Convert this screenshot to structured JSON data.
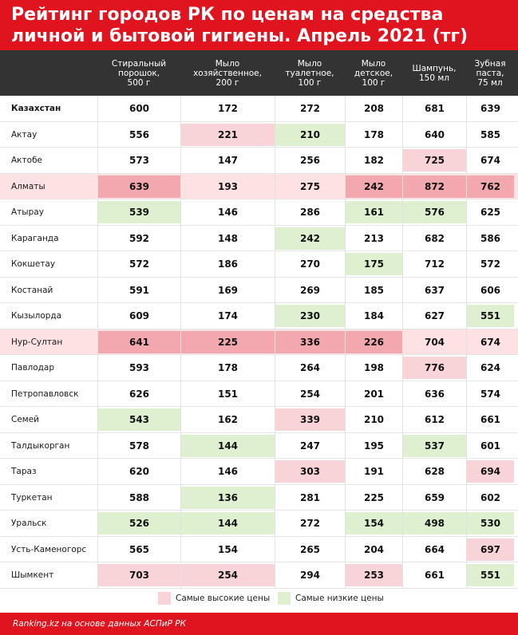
{
  "title": {
    "line1": "Рейтинг городов РК по ценам на средства",
    "line2": "личной и бытовой гигиены. Апрель 2021 (тг)"
  },
  "columns": [
    "Стиральный\nпорошок,\n500 г",
    "Мыло\nхозяйственное,\n200 г",
    "Мыло\nтуалетное,\n100 г",
    "Мыло\nдетское,\n100 г",
    "Шампунь,\n150 мл",
    "Зубная\nпаста,\n75 мл"
  ],
  "legend": {
    "high_label": "Самые высокие цены",
    "low_label": "Самые низкие цены",
    "high_color": "#f8d3d7",
    "low_color": "#dff0d0",
    "row_highlight_color": "#fde1e3"
  },
  "footer": "Ranking.kz на основе данных АСПиР РК",
  "chart_data": {
    "type": "table",
    "row_headers": [
      "Казахстан",
      "Актау",
      "Актобе",
      "Алматы",
      "Атырау",
      "Караганда",
      "Кокшетау",
      "Костанай",
      "Кызылорда",
      "Нур-Султан",
      "Павлодар",
      "Петропавловск",
      "Семей",
      "Талдыкорган",
      "Тараз",
      "Туркетан",
      "Уральск",
      "Усть-Каменогорс",
      "Шымкент"
    ],
    "row_highlight": [
      false,
      false,
      false,
      true,
      false,
      false,
      false,
      false,
      false,
      true,
      false,
      false,
      false,
      false,
      false,
      false,
      false,
      false,
      false
    ],
    "values": [
      [
        600,
        172,
        272,
        208,
        681,
        639
      ],
      [
        556,
        221,
        210,
        178,
        640,
        585
      ],
      [
        573,
        147,
        256,
        182,
        725,
        674
      ],
      [
        639,
        193,
        275,
        242,
        872,
        762
      ],
      [
        539,
        146,
        286,
        161,
        576,
        625
      ],
      [
        592,
        148,
        242,
        213,
        682,
        586
      ],
      [
        572,
        186,
        270,
        175,
        712,
        572
      ],
      [
        591,
        169,
        269,
        185,
        637,
        606
      ],
      [
        609,
        174,
        230,
        184,
        627,
        551
      ],
      [
        641,
        225,
        336,
        226,
        704,
        674
      ],
      [
        593,
        178,
        264,
        198,
        776,
        624
      ],
      [
        626,
        151,
        254,
        201,
        636,
        574
      ],
      [
        543,
        162,
        339,
        210,
        612,
        661
      ],
      [
        578,
        144,
        247,
        195,
        537,
        601
      ],
      [
        620,
        146,
        303,
        191,
        628,
        694
      ],
      [
        588,
        136,
        281,
        225,
        659,
        602
      ],
      [
        526,
        144,
        272,
        154,
        498,
        530
      ],
      [
        565,
        154,
        265,
        204,
        664,
        697
      ],
      [
        703,
        254,
        294,
        253,
        661,
        551
      ]
    ],
    "marks": [
      [
        "",
        "",
        "",
        "",
        "",
        ""
      ],
      [
        "",
        "high",
        "low",
        "",
        "",
        ""
      ],
      [
        "",
        "",
        "",
        "",
        "high",
        ""
      ],
      [
        "high",
        "",
        "",
        "high",
        "high",
        "high"
      ],
      [
        "low",
        "",
        "",
        "low",
        "low",
        ""
      ],
      [
        "",
        "",
        "low",
        "",
        "",
        ""
      ],
      [
        "",
        "",
        "",
        "low",
        "",
        ""
      ],
      [
        "",
        "",
        "",
        "",
        "",
        ""
      ],
      [
        "",
        "",
        "low",
        "",
        "",
        "low"
      ],
      [
        "high",
        "high",
        "high",
        "high",
        "",
        ""
      ],
      [
        "",
        "",
        "",
        "",
        "high",
        ""
      ],
      [
        "",
        "",
        "",
        "",
        "",
        ""
      ],
      [
        "low",
        "",
        "high",
        "",
        "",
        ""
      ],
      [
        "",
        "low",
        "",
        "",
        "low",
        ""
      ],
      [
        "",
        "",
        "high",
        "",
        "",
        "high"
      ],
      [
        "",
        "low",
        "",
        "",
        "",
        ""
      ],
      [
        "low",
        "low",
        "",
        "low",
        "low",
        "low"
      ],
      [
        "",
        "",
        "",
        "",
        "",
        "high"
      ],
      [
        "high",
        "high",
        "",
        "high",
        "",
        "low"
      ]
    ]
  }
}
